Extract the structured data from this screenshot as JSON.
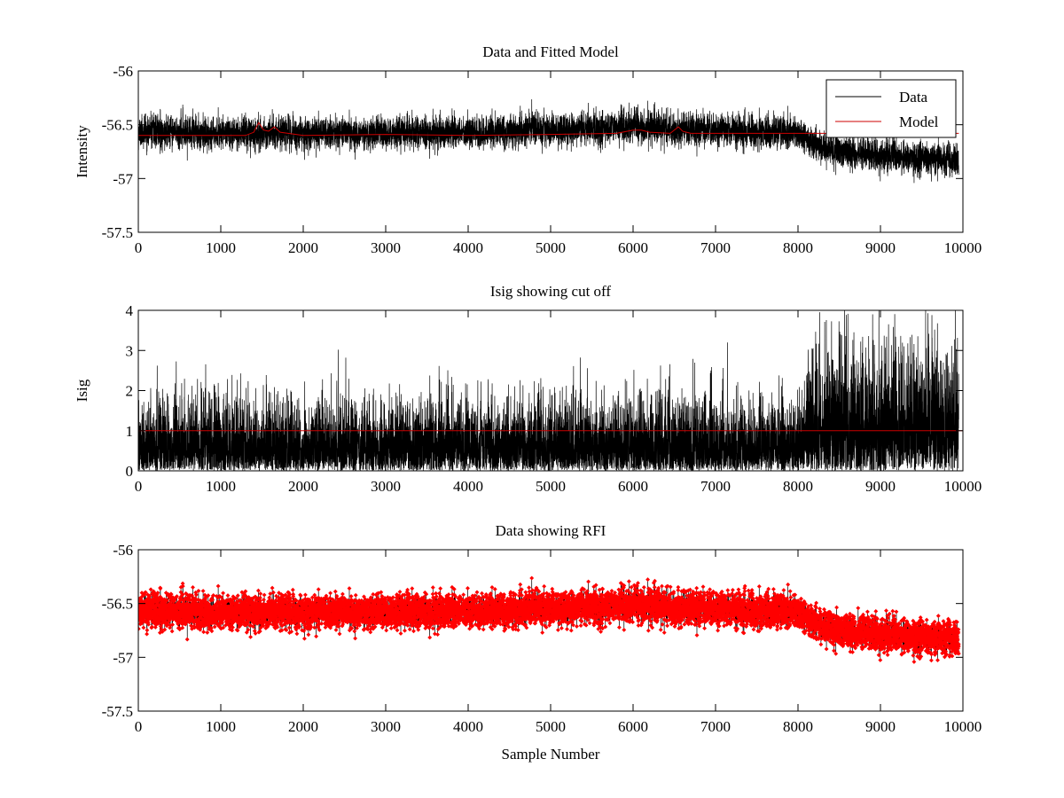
{
  "chart_data": [
    {
      "type": "line",
      "title": "Data and Fitted Model",
      "xlabel": "",
      "ylabel": "Intensity",
      "xlim": [
        0,
        10000
      ],
      "ylim": [
        -57.5,
        -56
      ],
      "xticks": [
        "0",
        "1000",
        "2000",
        "3000",
        "4000",
        "5000",
        "6000",
        "7000",
        "8000",
        "9000",
        "10000"
      ],
      "yticks": [
        "-56",
        "-56.5",
        "-57",
        "-57.5"
      ],
      "legend": "top-right",
      "series": [
        {
          "name": "Data",
          "color": "#000000",
          "style": "noise",
          "n": 9950,
          "seed": 11,
          "x": [
            0,
            2000,
            4000,
            6000,
            7500,
            8000,
            8300,
            9000,
            9950
          ],
          "y": [
            -56.57,
            -56.58,
            -56.57,
            -56.52,
            -56.56,
            -56.58,
            -56.72,
            -56.78,
            -56.83
          ],
          "noise_sd": 0.075
        },
        {
          "name": "Model",
          "color": "#cc0000",
          "style": "line",
          "x": [
            0,
            1300,
            1400,
            1460,
            1520,
            1580,
            1650,
            1720,
            2000,
            3000,
            4000,
            5000,
            5800,
            6000,
            6100,
            6200,
            6450,
            6550,
            6600,
            6700,
            7200,
            7500,
            8000,
            9000,
            9950
          ],
          "y": [
            -56.6,
            -56.6,
            -56.57,
            -56.48,
            -56.55,
            -56.56,
            -56.52,
            -56.57,
            -56.6,
            -56.59,
            -56.6,
            -56.59,
            -56.58,
            -56.55,
            -56.55,
            -56.57,
            -56.58,
            -56.52,
            -56.56,
            -56.58,
            -56.58,
            -56.58,
            -56.58,
            -56.58,
            -56.58
          ]
        }
      ]
    },
    {
      "type": "line",
      "title": "Isig showing cut off",
      "xlabel": "",
      "ylabel": "Isig",
      "xlim": [
        0,
        10000
      ],
      "ylim": [
        0,
        4
      ],
      "xticks": [
        "0",
        "1000",
        "2000",
        "3000",
        "4000",
        "5000",
        "6000",
        "7000",
        "8000",
        "9000",
        "10000"
      ],
      "yticks": [
        "0",
        "1",
        "2",
        "3",
        "4"
      ],
      "series": [
        {
          "color": "#000000",
          "style": "abs-noise",
          "n": 9950,
          "seed": 23,
          "x": [
            0,
            8000,
            8150,
            9000,
            9950
          ],
          "scale": [
            0.8,
            0.8,
            1.45,
            1.45,
            1.5
          ]
        },
        {
          "color": "#cc0000",
          "style": "line",
          "x": [
            0,
            10000
          ],
          "y": [
            1,
            1
          ]
        }
      ]
    },
    {
      "type": "line",
      "title": "Data showing RFI",
      "xlabel": "Sample Number",
      "ylabel": "",
      "xlim": [
        0,
        10000
      ],
      "ylim": [
        -57.5,
        -56
      ],
      "xticks": [
        "0",
        "1000",
        "2000",
        "3000",
        "4000",
        "5000",
        "6000",
        "7000",
        "8000",
        "9000",
        "10000"
      ],
      "yticks": [
        "-56",
        "-56.5",
        "-57",
        "-57.5"
      ],
      "series": [
        {
          "color": "#000000",
          "style": "noise",
          "n": 9950,
          "seed": 11,
          "x": [
            0,
            2000,
            4000,
            6000,
            7500,
            8000,
            8300,
            9000,
            9950
          ],
          "y": [
            -56.57,
            -56.58,
            -56.57,
            -56.52,
            -56.56,
            -56.58,
            -56.72,
            -56.78,
            -56.83
          ],
          "noise_sd": 0.075
        },
        {
          "color": "#ff0000",
          "style": "markers",
          "n": 9950,
          "seed": 11,
          "x": [
            0,
            2000,
            4000,
            6000,
            7500,
            8000,
            8300,
            9000,
            9950
          ],
          "y": [
            -56.57,
            -56.58,
            -56.57,
            -56.52,
            -56.56,
            -56.58,
            -56.72,
            -56.78,
            -56.83
          ],
          "noise_sd": 0.075
        }
      ]
    }
  ]
}
